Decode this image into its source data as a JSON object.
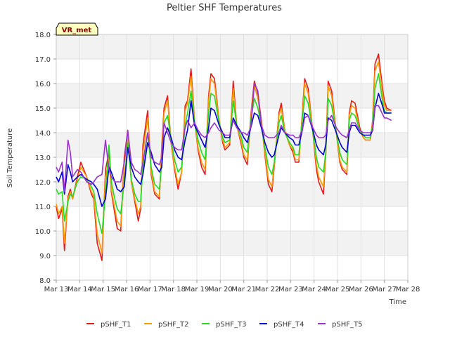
{
  "chart_data": {
    "type": "line",
    "title": "Peltier SHF Temperatures",
    "xlabel": "Time",
    "ylabel": "Soil Temperature",
    "badge": "VR_met",
    "ylim": [
      8.0,
      18.0
    ],
    "xlim": [
      13,
      28
    ],
    "yticks": [
      "8.0",
      "9.0",
      "10.0",
      "11.0",
      "12.0",
      "13.0",
      "14.0",
      "15.0",
      "16.0",
      "17.0",
      "18.0"
    ],
    "xticks": [
      "Mar 13",
      "Mar 14",
      "Mar 15",
      "Mar 16",
      "Mar 17",
      "Mar 18",
      "Mar 19",
      "Mar 20",
      "Mar 21",
      "Mar 22",
      "Mar 23",
      "Mar 24",
      "Mar 25",
      "Mar 26",
      "Mar 27",
      "Mar 28"
    ],
    "grid": true,
    "legend_position": "bottom",
    "series": [
      {
        "name": "pSHF_T1",
        "color": "#e41a1c",
        "x": [
          13.0,
          13.1,
          13.25,
          13.35,
          13.5,
          13.6,
          13.7,
          13.9,
          14.05,
          14.3,
          14.5,
          14.6,
          14.75,
          14.95,
          15.1,
          15.25,
          15.35,
          15.5,
          15.6,
          15.75,
          15.9,
          16.05,
          16.2,
          16.35,
          16.5,
          16.6,
          16.7,
          16.9,
          17.05,
          17.2,
          17.4,
          17.5,
          17.6,
          17.75,
          17.9,
          18.05,
          18.2,
          18.35,
          18.5,
          18.6,
          18.75,
          18.9,
          19.05,
          19.2,
          19.35,
          19.5,
          19.6,
          19.75,
          19.95,
          20.1,
          20.2,
          20.4,
          20.55,
          20.7,
          20.9,
          21.0,
          21.15,
          21.3,
          21.45,
          21.6,
          21.75,
          21.9,
          22.05,
          22.2,
          22.3,
          22.5,
          22.6,
          22.75,
          22.95,
          23.1,
          23.2,
          23.35,
          23.5,
          23.6,
          23.75,
          23.95,
          24.1,
          24.2,
          24.4,
          24.5,
          24.6,
          24.75,
          24.95,
          25.1,
          25.2,
          25.4,
          25.5,
          25.6,
          25.75,
          25.95,
          26.1,
          26.2,
          26.4,
          26.5,
          26.6,
          26.75,
          26.95,
          27.0,
          27.1,
          27.3
        ],
        "values": [
          11.0,
          10.5,
          10.9,
          9.2,
          11.4,
          11.7,
          11.3,
          12.2,
          12.8,
          12.2,
          11.5,
          11.3,
          9.5,
          8.8,
          12.5,
          13.2,
          11.6,
          10.7,
          10.1,
          10.0,
          13.0,
          14.1,
          12.0,
          11.2,
          10.4,
          10.9,
          13.5,
          14.9,
          12.3,
          11.5,
          11.3,
          13.4,
          15.0,
          15.5,
          13.6,
          12.5,
          11.7,
          12.4,
          15.1,
          15.3,
          16.6,
          14.5,
          13.3,
          12.6,
          12.3,
          15.5,
          16.4,
          16.2,
          14.5,
          13.6,
          13.3,
          13.5,
          16.1,
          14.3,
          13.5,
          13.0,
          12.7,
          14.7,
          16.1,
          15.6,
          14.5,
          13.1,
          11.9,
          11.6,
          12.6,
          14.8,
          15.2,
          14.1,
          13.5,
          13.2,
          12.8,
          12.8,
          14.8,
          16.2,
          15.8,
          14.0,
          12.5,
          12.0,
          11.5,
          13.1,
          16.1,
          15.7,
          14.0,
          12.8,
          12.5,
          12.3,
          14.8,
          15.3,
          15.2,
          14.2,
          13.8,
          13.7,
          13.7,
          14.5,
          16.8,
          17.2,
          15.6,
          15.3,
          15.0,
          14.9
        ]
      },
      {
        "name": "pSHF_T2",
        "color": "#ff9900",
        "x": [
          13.0,
          13.1,
          13.25,
          13.35,
          13.5,
          13.6,
          13.7,
          13.9,
          14.05,
          14.3,
          14.5,
          14.6,
          14.75,
          14.95,
          15.1,
          15.25,
          15.35,
          15.5,
          15.6,
          15.75,
          15.9,
          16.05,
          16.2,
          16.35,
          16.5,
          16.6,
          16.7,
          16.9,
          17.05,
          17.2,
          17.4,
          17.5,
          17.6,
          17.75,
          17.9,
          18.05,
          18.2,
          18.35,
          18.5,
          18.6,
          18.75,
          18.9,
          19.05,
          19.2,
          19.35,
          19.5,
          19.6,
          19.75,
          19.95,
          20.1,
          20.2,
          20.4,
          20.55,
          20.7,
          20.9,
          21.0,
          21.15,
          21.3,
          21.45,
          21.6,
          21.75,
          21.9,
          22.05,
          22.2,
          22.3,
          22.5,
          22.6,
          22.75,
          22.95,
          23.1,
          23.2,
          23.35,
          23.5,
          23.6,
          23.75,
          23.95,
          24.1,
          24.2,
          24.4,
          24.5,
          24.6,
          24.75,
          24.95,
          25.1,
          25.2,
          25.4,
          25.5,
          25.6,
          25.75,
          25.95,
          26.1,
          26.2,
          26.4,
          26.5,
          26.6,
          26.75,
          26.95,
          27.0,
          27.1,
          27.3
        ],
        "values": [
          11.1,
          10.7,
          11.0,
          9.5,
          11.3,
          11.6,
          11.3,
          12.1,
          12.6,
          12.2,
          11.6,
          11.4,
          9.9,
          9.1,
          12.2,
          12.9,
          11.7,
          10.9,
          10.4,
          10.2,
          12.7,
          13.9,
          12.0,
          11.3,
          10.7,
          11.0,
          13.2,
          14.6,
          12.4,
          11.6,
          11.4,
          13.2,
          14.8,
          15.3,
          13.6,
          12.6,
          11.9,
          12.4,
          14.9,
          15.2,
          16.3,
          14.5,
          13.4,
          12.8,
          12.5,
          15.3,
          16.2,
          16.0,
          14.5,
          13.7,
          13.4,
          13.6,
          15.8,
          14.3,
          13.6,
          13.1,
          12.9,
          14.6,
          15.9,
          15.4,
          14.4,
          13.2,
          12.1,
          11.8,
          12.7,
          14.7,
          15.0,
          14.1,
          13.5,
          13.3,
          12.9,
          12.9,
          14.7,
          16.0,
          15.6,
          14.0,
          12.7,
          12.2,
          11.8,
          13.1,
          15.9,
          15.5,
          14.0,
          12.9,
          12.6,
          12.4,
          14.7,
          15.1,
          15.0,
          14.1,
          13.8,
          13.7,
          13.7,
          14.4,
          16.5,
          16.9,
          15.4,
          15.1,
          14.9,
          14.9
        ]
      },
      {
        "name": "pSHF_T3",
        "color": "#22dd22",
        "x": [
          13.0,
          13.1,
          13.25,
          13.35,
          13.5,
          13.6,
          13.7,
          13.9,
          14.05,
          14.3,
          14.5,
          14.6,
          14.75,
          14.95,
          15.1,
          15.25,
          15.35,
          15.5,
          15.6,
          15.75,
          15.9,
          16.05,
          16.2,
          16.35,
          16.5,
          16.6,
          16.7,
          16.9,
          17.05,
          17.2,
          17.4,
          17.5,
          17.6,
          17.75,
          17.9,
          18.05,
          18.2,
          18.35,
          18.5,
          18.6,
          18.75,
          18.9,
          19.05,
          19.2,
          19.35,
          19.5,
          19.6,
          19.75,
          19.95,
          20.1,
          20.2,
          20.4,
          20.55,
          20.7,
          20.9,
          21.0,
          21.15,
          21.3,
          21.45,
          21.6,
          21.75,
          21.9,
          22.05,
          22.2,
          22.3,
          22.5,
          22.6,
          22.75,
          22.95,
          23.1,
          23.2,
          23.35,
          23.5,
          23.6,
          23.75,
          23.95,
          24.1,
          24.2,
          24.4,
          24.5,
          24.6,
          24.75,
          24.95,
          25.1,
          25.2,
          25.4,
          25.5,
          25.6,
          25.75,
          25.95,
          26.1,
          26.2,
          26.4,
          26.5,
          26.6,
          26.75,
          26.95,
          27.0,
          27.1,
          27.3
        ],
        "values": [
          11.7,
          11.5,
          11.6,
          10.4,
          11.2,
          11.5,
          11.4,
          12.0,
          12.2,
          12.1,
          11.8,
          11.6,
          10.7,
          9.9,
          11.5,
          13.5,
          12.0,
          11.3,
          10.9,
          10.7,
          12.0,
          13.6,
          12.1,
          11.5,
          11.2,
          11.2,
          12.6,
          14.0,
          12.6,
          11.9,
          11.7,
          12.7,
          14.4,
          14.7,
          13.7,
          12.9,
          12.4,
          12.6,
          14.3,
          14.8,
          15.7,
          14.4,
          13.7,
          13.2,
          12.9,
          14.8,
          15.6,
          15.5,
          14.4,
          13.8,
          13.6,
          13.7,
          15.3,
          14.3,
          13.8,
          13.4,
          13.2,
          14.5,
          15.4,
          15.0,
          14.3,
          13.4,
          12.6,
          12.3,
          12.8,
          14.4,
          14.7,
          14.0,
          13.6,
          13.4,
          13.1,
          13.1,
          14.5,
          15.5,
          15.2,
          14.0,
          13.0,
          12.6,
          12.4,
          13.2,
          15.4,
          15.1,
          14.0,
          13.2,
          12.9,
          12.7,
          14.5,
          14.8,
          14.7,
          14.1,
          13.9,
          13.8,
          13.8,
          14.3,
          15.8,
          16.4,
          15.1,
          14.9,
          14.8,
          14.8
        ]
      },
      {
        "name": "pSHF_T4",
        "color": "#0000cc",
        "x": [
          13.0,
          13.1,
          13.25,
          13.35,
          13.5,
          13.6,
          13.7,
          13.9,
          14.05,
          14.3,
          14.5,
          14.6,
          14.75,
          14.95,
          15.1,
          15.25,
          15.35,
          15.5,
          15.6,
          15.75,
          15.9,
          16.05,
          16.2,
          16.35,
          16.5,
          16.6,
          16.7,
          16.9,
          17.05,
          17.2,
          17.4,
          17.5,
          17.6,
          17.75,
          17.9,
          18.05,
          18.2,
          18.35,
          18.5,
          18.6,
          18.75,
          18.9,
          19.05,
          19.2,
          19.35,
          19.5,
          19.6,
          19.75,
          19.95,
          20.1,
          20.2,
          20.4,
          20.55,
          20.7,
          20.9,
          21.0,
          21.15,
          21.3,
          21.45,
          21.6,
          21.75,
          21.9,
          22.05,
          22.2,
          22.3,
          22.5,
          22.6,
          22.75,
          22.95,
          23.1,
          23.2,
          23.35,
          23.5,
          23.6,
          23.75,
          23.95,
          24.1,
          24.2,
          24.4,
          24.5,
          24.6,
          24.75,
          24.95,
          25.1,
          25.2,
          25.4,
          25.5,
          25.6,
          25.75,
          25.95,
          26.1,
          26.2,
          26.4,
          26.5,
          26.6,
          26.75,
          26.95,
          27.0,
          27.1,
          27.3
        ],
        "values": [
          12.2,
          12.0,
          12.4,
          11.5,
          12.7,
          12.4,
          12.0,
          12.2,
          12.3,
          12.1,
          12.0,
          11.9,
          11.7,
          11.0,
          11.3,
          12.6,
          12.4,
          12.0,
          11.7,
          11.6,
          11.8,
          13.4,
          12.6,
          12.2,
          12.0,
          11.9,
          12.3,
          13.6,
          13.2,
          12.7,
          12.4,
          12.6,
          13.8,
          14.2,
          13.8,
          13.3,
          13.0,
          12.9,
          13.7,
          14.1,
          15.3,
          14.3,
          14.0,
          13.7,
          13.4,
          14.2,
          15.0,
          14.9,
          14.3,
          14.0,
          13.8,
          13.8,
          14.6,
          14.3,
          14.0,
          13.8,
          13.6,
          14.2,
          14.8,
          14.7,
          14.2,
          13.6,
          13.2,
          13.0,
          13.1,
          13.9,
          14.2,
          14.0,
          13.8,
          13.7,
          13.5,
          13.5,
          14.1,
          14.8,
          14.7,
          14.1,
          13.5,
          13.3,
          13.1,
          13.5,
          14.6,
          14.5,
          14.0,
          13.6,
          13.4,
          13.2,
          14.0,
          14.3,
          14.3,
          14.0,
          13.9,
          13.9,
          13.9,
          14.1,
          15.0,
          15.6,
          15.0,
          14.8,
          14.8,
          14.8
        ]
      },
      {
        "name": "pSHF_T5",
        "color": "#9933cc",
        "x": [
          13.0,
          13.1,
          13.25,
          13.35,
          13.5,
          13.6,
          13.7,
          13.9,
          14.05,
          14.3,
          14.5,
          14.6,
          14.75,
          14.95,
          15.1,
          15.25,
          15.35,
          15.5,
          15.6,
          15.75,
          15.9,
          16.05,
          16.2,
          16.35,
          16.5,
          16.6,
          16.7,
          16.9,
          17.05,
          17.2,
          17.4,
          17.5,
          17.6,
          17.75,
          17.9,
          18.05,
          18.2,
          18.35,
          18.5,
          18.6,
          18.75,
          18.9,
          19.05,
          19.2,
          19.35,
          19.5,
          19.6,
          19.75,
          19.95,
          20.1,
          20.2,
          20.4,
          20.55,
          20.7,
          20.9,
          21.0,
          21.15,
          21.3,
          21.45,
          21.6,
          21.75,
          21.9,
          22.05,
          22.2,
          22.3,
          22.5,
          22.6,
          22.75,
          22.95,
          23.1,
          23.2,
          23.35,
          23.5,
          23.6,
          23.75,
          23.95,
          24.1,
          24.2,
          24.4,
          24.5,
          24.6,
          24.75,
          24.95,
          25.1,
          25.2,
          25.4,
          25.5,
          25.6,
          25.75,
          25.95,
          26.1,
          26.2,
          26.4,
          26.5,
          26.6,
          26.75,
          26.95,
          27.0,
          27.1,
          27.3
        ],
        "values": [
          12.6,
          12.4,
          12.8,
          11.6,
          13.7,
          13.2,
          12.2,
          12.5,
          12.4,
          12.0,
          11.9,
          12.0,
          12.2,
          12.3,
          13.7,
          12.5,
          12.2,
          12.0,
          12.0,
          12.0,
          12.8,
          14.1,
          12.8,
          12.5,
          12.4,
          12.3,
          12.8,
          14.0,
          13.0,
          12.8,
          12.7,
          13.0,
          14.4,
          14.0,
          13.6,
          13.4,
          13.3,
          13.3,
          14.2,
          14.5,
          14.2,
          14.4,
          14.1,
          13.9,
          13.8,
          14.0,
          14.2,
          14.4,
          14.1,
          14.0,
          13.9,
          13.9,
          14.5,
          14.2,
          14.0,
          14.0,
          13.9,
          14.2,
          16.0,
          15.7,
          14.3,
          13.9,
          13.8,
          13.8,
          13.8,
          14.0,
          14.3,
          14.0,
          13.9,
          13.9,
          13.8,
          13.8,
          14.1,
          14.6,
          14.7,
          14.2,
          13.9,
          13.8,
          13.8,
          13.9,
          14.5,
          14.7,
          14.2,
          14.0,
          13.9,
          13.8,
          14.1,
          14.4,
          14.4,
          14.1,
          14.0,
          14.0,
          14.0,
          14.1,
          15.1,
          15.1,
          14.7,
          14.6,
          14.6,
          14.5
        ]
      }
    ]
  }
}
